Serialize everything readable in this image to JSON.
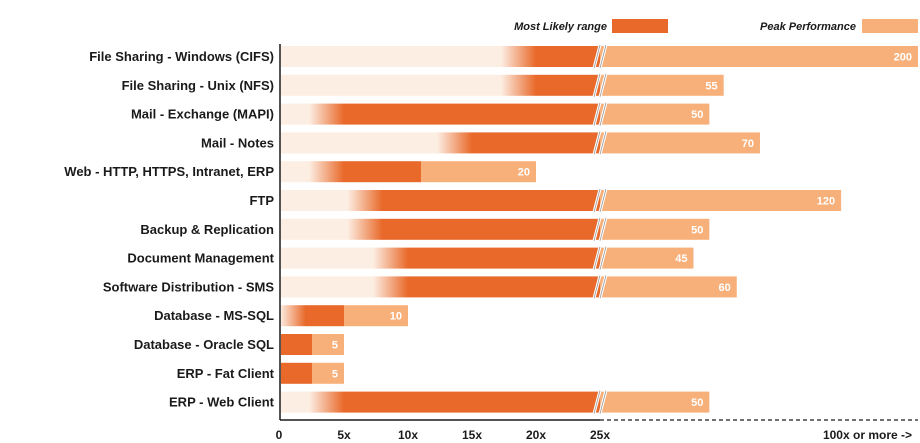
{
  "colors": {
    "most_likely": "#e8692a",
    "peak": "#f8b07a",
    "fade_light": "#fdeee3",
    "axis": "#1a1a1a",
    "value_text": "#ffffff"
  },
  "chart_data": {
    "type": "bar",
    "orientation": "horizontal",
    "legend": [
      "Most Likely range",
      "Peak Performance"
    ],
    "legend_placement": "top-right",
    "x_ticks": [
      "0",
      "5x",
      "10x",
      "15x",
      "20x",
      "25x",
      "100x or more ->"
    ],
    "categories": [
      "File Sharing - Windows (CIFS)",
      "File Sharing - Unix (NFS)",
      "Mail - Exchange (MAPI)",
      "Mail - Notes",
      "Web - HTTP, HTTPS, Intranet, ERP",
      "FTP",
      "Backup & Replication",
      "Document Management",
      "Software Distribution - SMS",
      "Database - MS-SQL",
      "Database - Oracle SQL",
      "ERP - Fat Client",
      "ERP - Web Client"
    ],
    "series": [
      {
        "name": "Most Likely range",
        "low": [
          20,
          20,
          5,
          15,
          5,
          8,
          8,
          10,
          10,
          2,
          0,
          0,
          5
        ],
        "high": [
          25,
          25,
          25,
          25,
          11,
          25,
          25,
          25,
          25,
          5,
          2.5,
          2.5,
          25
        ]
      },
      {
        "name": "Peak Performance",
        "values": [
          200,
          55,
          50,
          70,
          20,
          120,
          50,
          45,
          60,
          10,
          5,
          5,
          50
        ]
      }
    ],
    "value_labels": [
      "200",
      "55",
      "50",
      "70",
      "20",
      "120",
      "50",
      "45",
      "60",
      "10",
      "5",
      "5",
      "50"
    ],
    "axis_break_at": 25,
    "grid": false
  }
}
